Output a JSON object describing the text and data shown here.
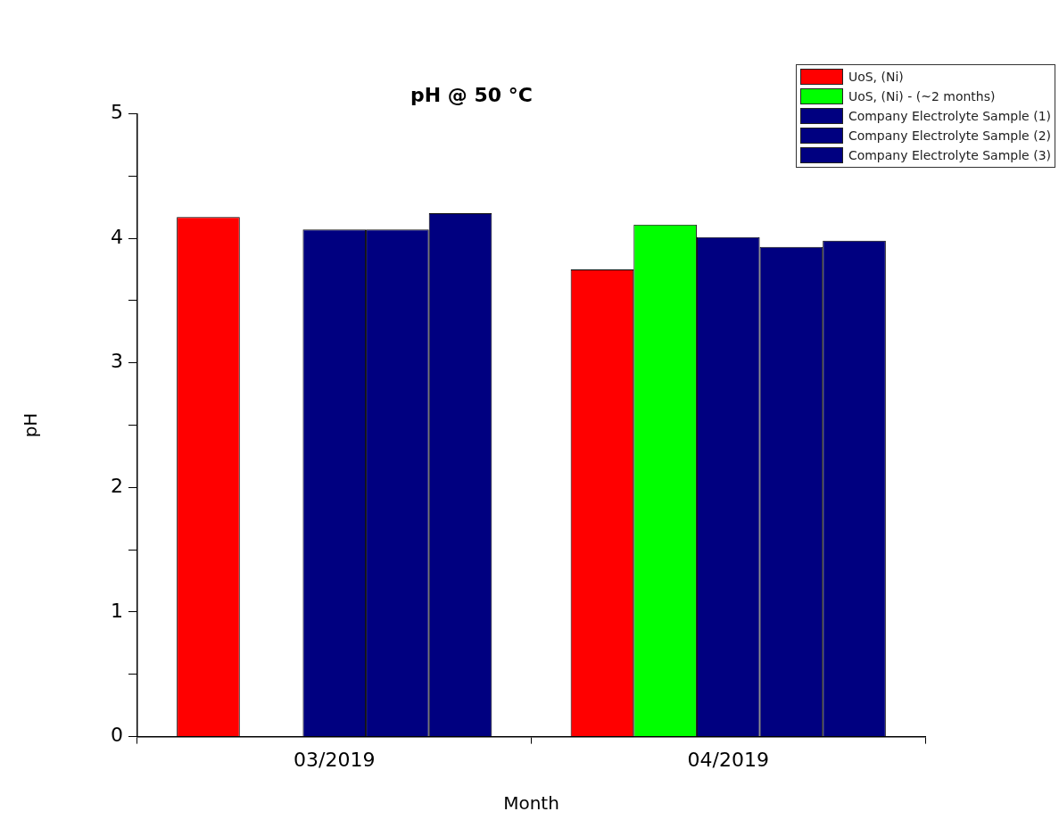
{
  "chart_data": {
    "type": "bar",
    "title": "pH @ 50 °C",
    "xlabel": "Month",
    "ylabel": "pH",
    "categories": [
      "03/2019",
      "04/2019"
    ],
    "series": [
      {
        "name": "UoS, (Ni)",
        "color": "#ff0000",
        "values": [
          4.17,
          3.75
        ]
      },
      {
        "name": "UoS, (Ni) - (~2 months)",
        "color": "#00ff00",
        "values": [
          null,
          4.11
        ]
      },
      {
        "name": "Company Electrolyte Sample (1)",
        "color": "#000080",
        "values": [
          4.07,
          4.01
        ]
      },
      {
        "name": "Company Electrolyte Sample (2)",
        "color": "#000080",
        "values": [
          4.07,
          3.93
        ]
      },
      {
        "name": "Company Electrolyte Sample (3)",
        "color": "#000080",
        "values": [
          4.2,
          3.98
        ]
      }
    ],
    "ylim": [
      0,
      5
    ],
    "yticks": [
      0,
      {
        "value": 0.5,
        "label": null
      },
      1,
      {
        "value": 1.5,
        "label": null
      },
      2,
      {
        "value": 2.5,
        "label": null
      },
      3,
      {
        "value": 3.5,
        "label": null
      },
      4,
      {
        "value": 4.5,
        "label": null
      },
      5
    ],
    "grid": false,
    "legend": "top right"
  }
}
